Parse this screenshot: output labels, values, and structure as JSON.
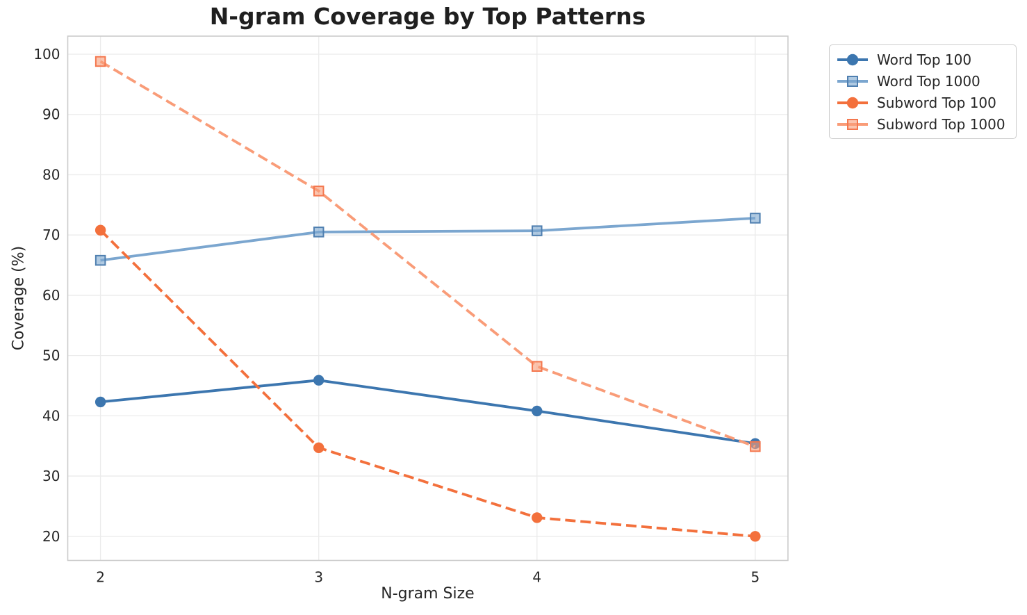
{
  "chart_data": {
    "type": "line",
    "title": "N-gram Coverage by Top Patterns",
    "xlabel": "N-gram Size",
    "ylabel": "Coverage (%)",
    "x": [
      2,
      3,
      4,
      5
    ],
    "xticks": [
      "2",
      "3",
      "4",
      "5"
    ],
    "yticks": [
      20,
      30,
      40,
      50,
      60,
      70,
      80,
      90,
      100
    ],
    "xlim": [
      1.85,
      5.15
    ],
    "ylim": [
      16.0,
      103.0
    ],
    "grid": true,
    "legend_position": "outside-upper-right",
    "series": [
      {
        "name": "Word Top 100",
        "values": [
          42.3,
          45.9,
          40.8,
          35.4
        ],
        "color": "#3C76AF",
        "marker": "circle",
        "marker_edge": "#3C76AF",
        "line_style": "solid"
      },
      {
        "name": "Word Top 1000",
        "values": [
          65.8,
          70.5,
          70.7,
          72.8
        ],
        "color": "#7BA6CF",
        "marker": "square",
        "marker_edge": "#4F7FB0",
        "line_style": "solid"
      },
      {
        "name": "Subword Top 100",
        "values": [
          70.8,
          34.7,
          23.1,
          20.0
        ],
        "color": "#F3703C",
        "marker": "circle",
        "marker_edge": "#F3703C",
        "line_style": "dashed"
      },
      {
        "name": "Subword Top 1000",
        "values": [
          98.8,
          77.3,
          48.2,
          34.9
        ],
        "color": "#F99C78",
        "marker": "square",
        "marker_edge": "#F4774E",
        "line_style": "dashed"
      }
    ],
    "styles": {
      "grid_color": "#ebebeb",
      "spine_color": "#cbcbcb",
      "tick_label_color": "#262626",
      "axis_label_color": "#262626",
      "title_color": "#1f1f1f",
      "legend_border_color": "#cccccc",
      "legend_background": "#ffffff",
      "background": "#ffffff"
    }
  }
}
